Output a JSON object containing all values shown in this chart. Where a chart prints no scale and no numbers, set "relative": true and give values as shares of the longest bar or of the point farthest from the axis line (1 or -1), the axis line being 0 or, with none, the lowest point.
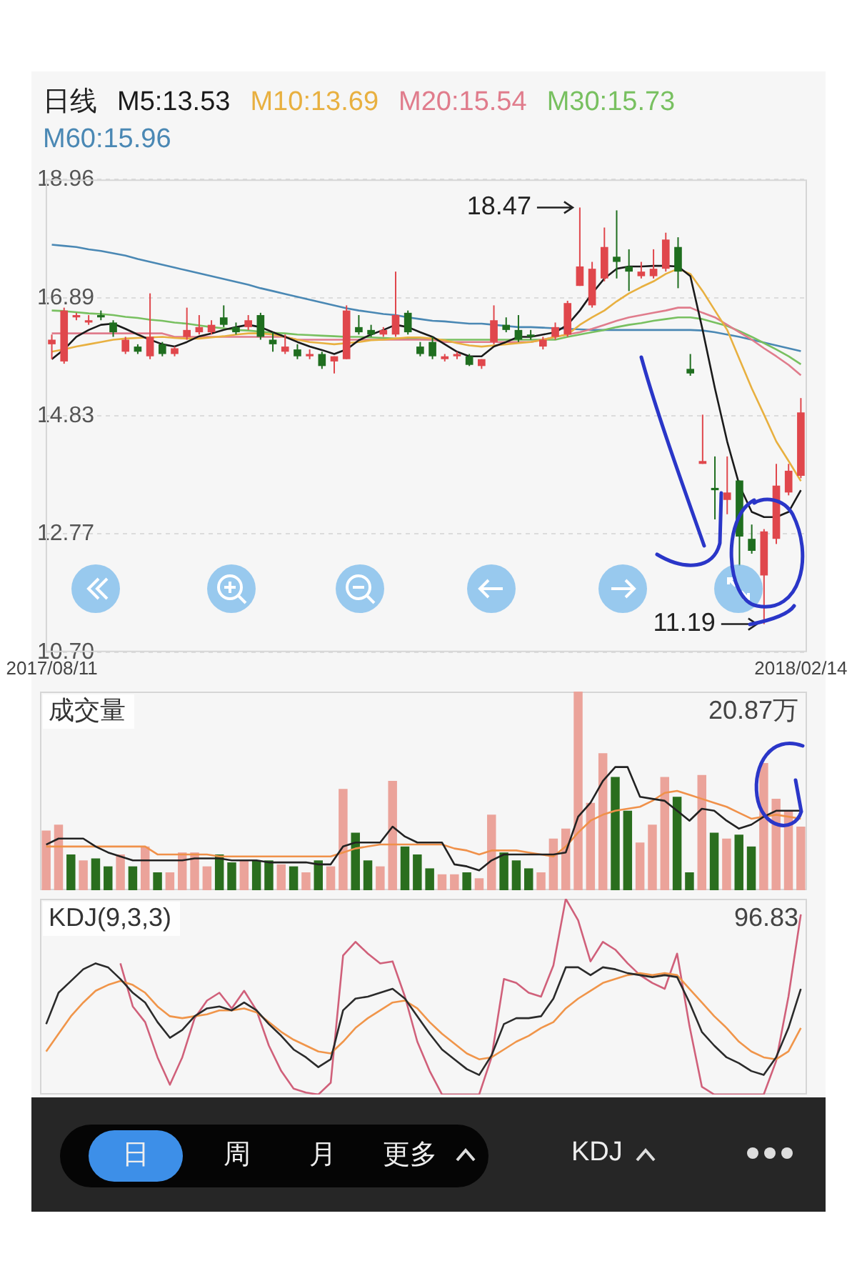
{
  "chart_data": [
    {
      "type": "candlestick",
      "legend_title": "日线",
      "legend": "top left",
      "grid": "y",
      "categories": [
        "2017/08/11",
        null,
        null,
        null,
        null,
        null,
        null,
        null,
        null,
        null,
        null,
        null,
        null,
        null,
        null,
        null,
        null,
        null,
        null,
        null,
        null,
        null,
        null,
        null,
        null,
        null,
        null,
        null,
        null,
        null,
        null,
        null,
        null,
        null,
        null,
        null,
        null,
        null,
        null,
        null,
        null,
        null,
        null,
        null,
        null,
        null,
        null,
        null,
        null,
        null,
        null,
        null,
        null,
        null,
        null,
        null,
        null,
        null,
        null,
        null,
        null,
        "2018/02/14"
      ],
      "ylim": [
        10.7,
        18.96
      ],
      "yticks": [
        18.96,
        16.89,
        14.83,
        12.77,
        {
          "value": 10.7,
          "label": "10.70"
        }
      ],
      "annotations": [
        "18.47",
        "11.19"
      ],
      "ohlc": [
        [
          16.08,
          16.25,
          15.82,
          16.16
        ],
        [
          15.78,
          16.72,
          15.74,
          16.67
        ],
        [
          16.55,
          16.63,
          16.5,
          16.59
        ],
        [
          16.46,
          16.59,
          16.42,
          16.5
        ],
        [
          16.59,
          16.67,
          16.5,
          16.55
        ],
        [
          16.46,
          16.5,
          16.21,
          16.29
        ],
        [
          15.95,
          16.21,
          15.91,
          16.16
        ],
        [
          16.04,
          16.08,
          15.91,
          15.95
        ],
        [
          15.87,
          16.97,
          15.82,
          16.21
        ],
        [
          16.08,
          16.12,
          15.87,
          15.91
        ],
        [
          15.91,
          16.04,
          15.87,
          16.01
        ],
        [
          16.21,
          16.72,
          16.16,
          16.33
        ],
        [
          16.29,
          16.59,
          16.25,
          16.38
        ],
        [
          16.29,
          16.5,
          16.25,
          16.42
        ],
        [
          16.55,
          16.76,
          16.38,
          16.42
        ],
        [
          16.38,
          16.46,
          16.25,
          16.29
        ],
        [
          16.38,
          16.59,
          16.33,
          16.5
        ],
        [
          16.59,
          16.63,
          16.16,
          16.21
        ],
        [
          16.16,
          16.29,
          15.95,
          16.08
        ],
        [
          15.95,
          16.25,
          15.91,
          16.04
        ],
        [
          15.99,
          16.08,
          15.82,
          15.87
        ],
        [
          15.87,
          15.99,
          15.82,
          15.91
        ],
        [
          15.91,
          15.95,
          15.65,
          15.7
        ],
        [
          15.78,
          15.87,
          15.57,
          15.87
        ],
        [
          15.82,
          16.76,
          15.82,
          16.67
        ],
        [
          16.38,
          16.59,
          16.25,
          16.29
        ],
        [
          16.33,
          16.42,
          16.21,
          16.25
        ],
        [
          16.25,
          16.38,
          16.21,
          16.33
        ],
        [
          16.25,
          17.35,
          16.21,
          16.59
        ],
        [
          16.63,
          16.67,
          16.25,
          16.29
        ],
        [
          16.04,
          16.12,
          15.87,
          15.91
        ],
        [
          16.12,
          16.21,
          15.82,
          15.87
        ],
        [
          15.82,
          15.91,
          15.78,
          15.87
        ],
        [
          15.87,
          15.95,
          15.82,
          15.91
        ],
        [
          15.87,
          15.91,
          15.7,
          15.72
        ],
        [
          15.7,
          15.82,
          15.65,
          15.82
        ],
        [
          16.12,
          16.76,
          16.08,
          16.5
        ],
        [
          16.42,
          16.55,
          16.29,
          16.33
        ],
        [
          16.33,
          16.59,
          16.12,
          16.16
        ],
        [
          16.25,
          16.33,
          16.16,
          16.21
        ],
        [
          16.04,
          16.21,
          15.99,
          16.16
        ],
        [
          16.21,
          16.46,
          16.16,
          16.38
        ],
        [
          16.25,
          16.84,
          16.21,
          16.8
        ],
        [
          17.1,
          18.47,
          17.1,
          17.44
        ],
        [
          16.76,
          17.52,
          16.72,
          17.4
        ],
        [
          17.23,
          18.12,
          17.18,
          17.78
        ],
        [
          17.61,
          18.42,
          17.23,
          17.52
        ],
        [
          17.44,
          17.74,
          17.01,
          17.35
        ],
        [
          17.27,
          17.52,
          17.23,
          17.35
        ],
        [
          17.27,
          17.74,
          17.23,
          17.4
        ],
        [
          17.4,
          18.03,
          17.35,
          17.91
        ],
        [
          17.78,
          17.95,
          17.06,
          17.35
        ],
        [
          15.65,
          15.91,
          15.53,
          15.57
        ],
        [
          13.99,
          14.85,
          13.99,
          14.04
        ],
        [
          13.57,
          14.12,
          13.02,
          13.53
        ],
        [
          13.36,
          14.12,
          13.11,
          13.49
        ],
        [
          13.7,
          13.7,
          12.21,
          12.72
        ],
        [
          12.68,
          12.93,
          12.42,
          12.47
        ],
        [
          12.04,
          12.85,
          11.19,
          12.81
        ],
        [
          12.68,
          13.99,
          12.59,
          13.61
        ],
        [
          13.49,
          13.99,
          13.44,
          13.87
        ],
        [
          13.78,
          15.14,
          13.74,
          14.89
        ]
      ],
      "colors": [
        "#e0474c",
        "#e0474c",
        "#e0474c",
        "#e0474c",
        "#1f6e1f",
        "#1f6e1f",
        "#e0474c",
        "#1f6e1f",
        "#e0474c",
        "#1f6e1f",
        "#e0474c",
        "#e0474c",
        "#e0474c",
        "#e0474c",
        "#1f6e1f",
        "#1f6e1f",
        "#e0474c",
        "#1f6e1f",
        "#1f6e1f",
        "#e0474c",
        "#1f6e1f",
        "#e0474c",
        "#1f6e1f",
        "#e0474c",
        "#e0474c",
        "#1f6e1f",
        "#1f6e1f",
        "#e0474c",
        "#e0474c",
        "#1f6e1f",
        "#1f6e1f",
        "#1f6e1f",
        "#e0474c",
        "#e0474c",
        "#1f6e1f",
        "#e0474c",
        "#e0474c",
        "#1f6e1f",
        "#1f6e1f",
        "#1f6e1f",
        "#e0474c",
        "#e0474c",
        "#e0474c",
        "#e0474c",
        "#e0474c",
        "#e0474c",
        "#1f6e1f",
        "#1f6e1f",
        "#e0474c",
        "#e0474c",
        "#e0474c",
        "#1f6e1f",
        "#1f6e1f",
        "#e0474c",
        "#1f6e1f",
        "#e0474c",
        "#1f6e1f",
        "#1f6e1f",
        "#e0474c",
        "#e0474c",
        "#e0474c",
        "#e0474c"
      ],
      "series": [
        {
          "type": "line",
          "name": "M5:13.53",
          "color": "#1a1a1a",
          "values": [
            15.82,
            15.99,
            16.21,
            16.33,
            16.42,
            16.44,
            16.35,
            16.25,
            16.16,
            16.08,
            16.04,
            16.12,
            16.22,
            16.27,
            16.33,
            16.38,
            16.42,
            16.38,
            16.29,
            16.21,
            16.12,
            16.04,
            15.98,
            15.91,
            15.99,
            16.15,
            16.25,
            16.33,
            16.42,
            16.38,
            16.29,
            16.21,
            16.08,
            15.95,
            15.87,
            15.87,
            16.04,
            16.12,
            16.21,
            16.21,
            16.25,
            16.29,
            16.42,
            16.67,
            16.97,
            17.23,
            17.4,
            17.44,
            17.44,
            17.45,
            17.45,
            17.44,
            17.27,
            16.33,
            15.31,
            14.38,
            13.61,
            13.15,
            13.06,
            13.06,
            13.15,
            13.53
          ]
        },
        {
          "type": "line",
          "name": "M10:13.69",
          "color": "#e8b040",
          "values": [
            15.95,
            15.99,
            16.04,
            16.08,
            16.12,
            16.16,
            16.18,
            16.19,
            16.2,
            16.21,
            16.19,
            16.18,
            16.18,
            16.2,
            16.22,
            16.25,
            16.27,
            16.27,
            16.25,
            16.21,
            16.16,
            16.12,
            16.1,
            16.08,
            16.1,
            16.12,
            16.15,
            16.16,
            16.18,
            16.2,
            16.2,
            16.18,
            16.15,
            16.1,
            16.06,
            16.04,
            16.06,
            16.08,
            16.1,
            16.12,
            16.16,
            16.21,
            16.25,
            16.42,
            16.55,
            16.67,
            16.83,
            16.97,
            17.08,
            17.18,
            17.31,
            17.4,
            17.31,
            17.01,
            16.67,
            16.33,
            15.82,
            15.31,
            14.85,
            14.38,
            14.04,
            13.69
          ]
        },
        {
          "type": "line",
          "name": "M20:15.54",
          "color": "#e07c8c",
          "values": [
            16.27,
            16.27,
            16.27,
            16.27,
            16.27,
            16.27,
            16.27,
            16.27,
            16.27,
            16.27,
            16.21,
            16.21,
            16.21,
            16.21,
            16.21,
            16.21,
            16.21,
            16.21,
            16.21,
            16.21,
            16.16,
            16.16,
            16.16,
            16.16,
            16.16,
            16.16,
            16.16,
            16.16,
            16.16,
            16.16,
            16.16,
            16.16,
            16.12,
            16.12,
            16.12,
            16.12,
            16.12,
            16.12,
            16.12,
            16.12,
            16.16,
            16.21,
            16.25,
            16.29,
            16.35,
            16.42,
            16.49,
            16.55,
            16.59,
            16.63,
            16.67,
            16.72,
            16.72,
            16.63,
            16.55,
            16.42,
            16.29,
            16.16,
            16.01,
            15.87,
            15.72,
            15.54
          ]
        },
        {
          "type": "line",
          "name": "M30:15.73",
          "color": "#78c060",
          "values": [
            16.67,
            16.66,
            16.64,
            16.62,
            16.61,
            16.59,
            16.56,
            16.54,
            16.51,
            16.49,
            16.46,
            16.44,
            16.41,
            16.38,
            16.36,
            16.33,
            16.32,
            16.3,
            16.28,
            16.27,
            16.25,
            16.24,
            16.23,
            16.22,
            16.21,
            16.21,
            16.2,
            16.19,
            16.18,
            16.18,
            16.17,
            16.16,
            16.16,
            16.16,
            16.16,
            16.16,
            16.16,
            16.16,
            16.16,
            16.16,
            16.16,
            16.16,
            16.21,
            16.25,
            16.29,
            16.33,
            16.38,
            16.42,
            16.45,
            16.49,
            16.52,
            16.55,
            16.55,
            16.52,
            16.46,
            16.4,
            16.31,
            16.21,
            16.1,
            15.99,
            15.87,
            15.73
          ]
        },
        {
          "type": "line",
          "name": "M60:15.96",
          "color": "#4a88b4",
          "values": [
            17.82,
            17.8,
            17.78,
            17.74,
            17.71,
            17.67,
            17.63,
            17.57,
            17.52,
            17.47,
            17.42,
            17.37,
            17.32,
            17.27,
            17.22,
            17.17,
            17.12,
            17.06,
            17.01,
            16.96,
            16.91,
            16.86,
            16.81,
            16.76,
            16.71,
            16.67,
            16.64,
            16.61,
            16.59,
            16.55,
            16.52,
            16.49,
            16.48,
            16.46,
            16.44,
            16.44,
            16.42,
            16.4,
            16.38,
            16.38,
            16.37,
            16.36,
            16.35,
            16.34,
            16.33,
            16.33,
            16.33,
            16.33,
            16.33,
            16.33,
            16.33,
            16.33,
            16.33,
            16.32,
            16.29,
            16.25,
            16.21,
            16.16,
            16.11,
            16.06,
            16.01,
            15.96
          ]
        }
      ]
    },
    {
      "type": "bar",
      "title": "成交量",
      "relative": true,
      "categories": [
        null,
        null,
        null,
        null,
        null,
        null,
        null,
        null,
        null,
        null,
        null,
        null,
        null,
        null,
        null,
        null,
        null,
        null,
        null,
        null,
        null,
        null,
        null,
        null,
        null,
        null,
        null,
        null,
        null,
        null,
        null,
        null,
        null,
        null,
        null,
        null,
        null,
        null,
        null,
        null,
        null,
        null,
        null,
        null,
        null,
        null,
        null,
        null,
        null,
        null,
        null,
        null,
        null,
        null,
        null,
        null,
        null,
        null,
        null,
        null,
        null,
        null
      ],
      "annotations": [
        "20.87万"
      ],
      "series": [
        {
          "type": "bar",
          "values": [
            0.3,
            0.33,
            0.18,
            0.15,
            0.16,
            0.12,
            0.18,
            0.12,
            0.22,
            0.09,
            0.09,
            0.19,
            0.19,
            0.12,
            0.18,
            0.14,
            0.15,
            0.15,
            0.15,
            0.13,
            0.12,
            0.09,
            0.15,
            0.12,
            0.51,
            0.29,
            0.15,
            0.12,
            0.55,
            0.22,
            0.18,
            0.11,
            0.08,
            0.08,
            0.09,
            0.06,
            0.38,
            0.19,
            0.15,
            0.11,
            0.09,
            0.26,
            0.31,
            1,
            0.44,
            0.69,
            0.57,
            0.4,
            0.24,
            0.33,
            0.57,
            0.47,
            0.09,
            0.58,
            0.29,
            0.26,
            0.28,
            0.22,
            0.64,
            0.46,
            0.4,
            0.32
          ],
          "colors": [
            "#eba39a",
            "#eba39a",
            "#2a6e1e",
            "#eba39a",
            "#2a6e1e",
            "#2a6e1e",
            "#eba39a",
            "#2a6e1e",
            "#eba39a",
            "#2a6e1e",
            "#eba39a",
            "#eba39a",
            "#eba39a",
            "#eba39a",
            "#2a6e1e",
            "#2a6e1e",
            "#eba39a",
            "#2a6e1e",
            "#2a6e1e",
            "#eba39a",
            "#2a6e1e",
            "#eba39a",
            "#2a6e1e",
            "#eba39a",
            "#eba39a",
            "#2a6e1e",
            "#2a6e1e",
            "#eba39a",
            "#eba39a",
            "#2a6e1e",
            "#2a6e1e",
            "#2a6e1e",
            "#eba39a",
            "#eba39a",
            "#2a6e1e",
            "#eba39a",
            "#eba39a",
            "#2a6e1e",
            "#2a6e1e",
            "#2a6e1e",
            "#eba39a",
            "#eba39a",
            "#eba39a",
            "#eba39a",
            "#eba39a",
            "#eba39a",
            "#2a6e1e",
            "#2a6e1e",
            "#eba39a",
            "#eba39a",
            "#eba39a",
            "#2a6e1e",
            "#2a6e1e",
            "#eba39a",
            "#2a6e1e",
            "#eba39a",
            "#2a6e1e",
            "#2a6e1e",
            "#eba39a",
            "#eba39a",
            "#eba39a",
            "#eba39a"
          ]
        },
        {
          "type": "line",
          "color": "#222222",
          "values": [
            0.23,
            0.26,
            0.26,
            0.26,
            0.22,
            0.19,
            0.17,
            0.15,
            0.15,
            0.15,
            0.15,
            0.15,
            0.16,
            0.16,
            0.16,
            0.15,
            0.15,
            0.15,
            0.14,
            0.14,
            0.14,
            0.14,
            0.13,
            0.13,
            0.22,
            0.24,
            0.24,
            0.24,
            0.32,
            0.27,
            0.24,
            0.24,
            0.24,
            0.13,
            0.12,
            0.1,
            0.15,
            0.18,
            0.18,
            0.18,
            0.18,
            0.18,
            0.19,
            0.37,
            0.44,
            0.55,
            0.62,
            0.62,
            0.47,
            0.46,
            0.45,
            0.4,
            0.35,
            0.41,
            0.4,
            0.35,
            0.31,
            0.33,
            0.37,
            0.4,
            0.4,
            0.4
          ]
        },
        {
          "type": "line",
          "color": "#f0914a",
          "values": [
            0.22,
            0.22,
            0.22,
            0.22,
            0.22,
            0.22,
            0.22,
            0.22,
            0.22,
            0.18,
            0.18,
            0.18,
            0.18,
            0.18,
            0.17,
            0.17,
            0.17,
            0.17,
            0.17,
            0.17,
            0.17,
            0.17,
            0.17,
            0.17,
            0.19,
            0.21,
            0.22,
            0.23,
            0.23,
            0.23,
            0.23,
            0.23,
            0.23,
            0.21,
            0.2,
            0.18,
            0.2,
            0.2,
            0.2,
            0.19,
            0.18,
            0.17,
            0.22,
            0.29,
            0.35,
            0.38,
            0.4,
            0.41,
            0.42,
            0.45,
            0.49,
            0.5,
            0.48,
            0.46,
            0.44,
            0.42,
            0.39,
            0.36,
            0.37,
            0.38,
            0.37,
            0.36
          ]
        }
      ]
    },
    {
      "type": "line",
      "title": "KDJ(9,3,3)",
      "relative": true,
      "categories": [
        null,
        null,
        null,
        null,
        null,
        null,
        null,
        null,
        null,
        null,
        null,
        null,
        null,
        null,
        null,
        null,
        null,
        null,
        null,
        null,
        null,
        null,
        null,
        null,
        null,
        null,
        null,
        null,
        null,
        null,
        null,
        null,
        null,
        null,
        null,
        null,
        null,
        null,
        null,
        null,
        null,
        null,
        null,
        null,
        null,
        null,
        null,
        null,
        null,
        null,
        null,
        null,
        null,
        null,
        null,
        null,
        null,
        null,
        null,
        null,
        null,
        null
      ],
      "annotations": [
        "96.83"
      ],
      "series": [
        {
          "color": "#2b2b2b",
          "values": [
            0.36,
            0.52,
            0.58,
            0.64,
            0.67,
            0.65,
            0.59,
            0.52,
            0.47,
            0.37,
            0.29,
            0.33,
            0.4,
            0.44,
            0.45,
            0.43,
            0.47,
            0.43,
            0.36,
            0.3,
            0.23,
            0.19,
            0.14,
            0.18,
            0.43,
            0.49,
            0.5,
            0.52,
            0.54,
            0.49,
            0.4,
            0.31,
            0.23,
            0.18,
            0.13,
            0.1,
            0.2,
            0.36,
            0.39,
            0.39,
            0.4,
            0.49,
            0.65,
            0.65,
            0.61,
            0.65,
            0.64,
            0.62,
            0.61,
            0.6,
            0.61,
            0.6,
            0.47,
            0.32,
            0.25,
            0.19,
            0.16,
            0.12,
            0.1,
            0.19,
            0.34,
            0.54
          ]
        },
        {
          "color": "#f0954a",
          "values": [
            0.22,
            0.31,
            0.4,
            0.47,
            0.53,
            0.56,
            0.58,
            0.56,
            0.52,
            0.45,
            0.4,
            0.39,
            0.4,
            0.41,
            0.43,
            0.43,
            0.44,
            0.42,
            0.37,
            0.32,
            0.28,
            0.25,
            0.22,
            0.21,
            0.27,
            0.34,
            0.39,
            0.43,
            0.47,
            0.48,
            0.44,
            0.37,
            0.31,
            0.26,
            0.21,
            0.18,
            0.19,
            0.23,
            0.27,
            0.3,
            0.34,
            0.37,
            0.44,
            0.49,
            0.53,
            0.57,
            0.59,
            0.61,
            0.62,
            0.61,
            0.62,
            0.61,
            0.54,
            0.47,
            0.4,
            0.34,
            0.27,
            0.22,
            0.19,
            0.18,
            0.22,
            0.34
          ]
        },
        {
          "color": "#d0607a",
          "values": [
            null,
            null,
            null,
            null,
            null,
            null,
            0.67,
            0.45,
            0.37,
            0.19,
            0.05,
            0.19,
            0.39,
            0.48,
            0.52,
            0.44,
            0.53,
            0.43,
            0.25,
            0.12,
            0.03,
            0.01,
            0,
            0.06,
            0.71,
            0.78,
            0.72,
            0.67,
            0.68,
            0.5,
            0.27,
            0.12,
            0,
            0,
            0,
            0,
            0.19,
            0.59,
            0.57,
            0.52,
            0.5,
            0.66,
            1,
            0.89,
            0.68,
            0.78,
            0.74,
            0.67,
            0.61,
            0.57,
            0.54,
            0.72,
            0.35,
            0.04,
            0,
            0,
            0,
            0,
            0,
            0.17,
            0.5,
            0.92
          ]
        }
      ]
    },
    {
      "type": "other",
      "annotations": [
        "日",
        "周",
        "月",
        "更多",
        "KDJ"
      ]
    }
  ]
}
